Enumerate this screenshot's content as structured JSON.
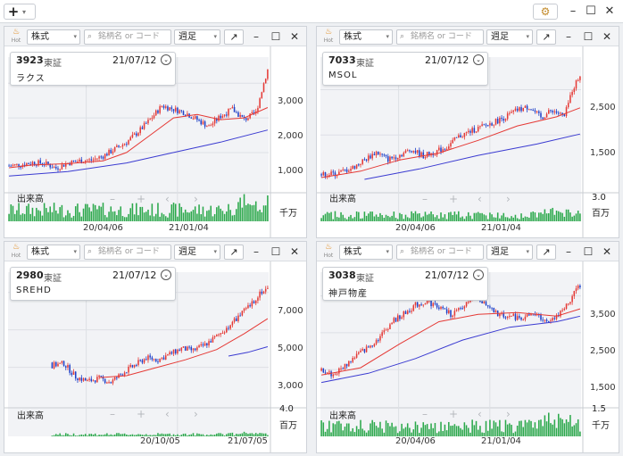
{
  "toolbar": {
    "add_icon": "plus-icon",
    "settings_icon": "gear-icon"
  },
  "panels": [
    {
      "controls": {
        "hot_label": "Hot",
        "type": "株式",
        "search_placeholder": "銘柄名 or コード",
        "period": "週足"
      },
      "info": {
        "code": "3923",
        "exchange": "東証",
        "date": "21/07/12",
        "name": "ラクス"
      },
      "price_ticks": [
        "3,000",
        "2,000",
        "1,000"
      ],
      "volume_label": "出来高",
      "volume_tick": "",
      "volume_unit": "千万",
      "date_ticks": [
        "20/04/06",
        "21/01/04"
      ]
    },
    {
      "controls": {
        "hot_label": "Hot",
        "type": "株式",
        "search_placeholder": "銘柄名 or コード",
        "period": "週足"
      },
      "info": {
        "code": "7033",
        "exchange": "東証",
        "date": "21/07/12",
        "name": "MSOL"
      },
      "price_ticks": [
        "2,500",
        "1,500"
      ],
      "volume_label": "出来高",
      "volume_tick": "3.0",
      "volume_unit": "百万",
      "date_ticks": [
        "20/04/06",
        "21/01/04"
      ]
    },
    {
      "controls": {
        "hot_label": "Hot",
        "type": "株式",
        "search_placeholder": "銘柄名 or コード",
        "period": "週足"
      },
      "info": {
        "code": "2980",
        "exchange": "東証",
        "date": "21/07/12",
        "name": "SREHD"
      },
      "price_ticks": [
        "7,000",
        "5,000",
        "3,000"
      ],
      "volume_label": "出来高",
      "volume_tick": "4.0",
      "volume_unit": "百万",
      "date_ticks": [
        "20/10/05",
        "21/07/05"
      ]
    },
    {
      "controls": {
        "hot_label": "Hot",
        "type": "株式",
        "search_placeholder": "銘柄名 or コード",
        "period": "週足"
      },
      "info": {
        "code": "3038",
        "exchange": "東証",
        "date": "21/07/12",
        "name": "神戸物産"
      },
      "price_ticks": [
        "3,500",
        "2,500",
        "1,500"
      ],
      "volume_label": "出来高",
      "volume_tick": "1.5",
      "volume_unit": "千万",
      "date_ticks": [
        "20/04/06",
        "21/01/04"
      ]
    }
  ],
  "chart_data": [
    {
      "type": "candlestick",
      "title": "3923 ラクス",
      "x_ticks": [
        "20/04/06",
        "21/01/04"
      ],
      "ylim": [
        200,
        3600
      ],
      "y_ticks": [
        1000,
        2000,
        3000
      ],
      "anchors": [
        [
          0,
          620
        ],
        [
          6,
          650
        ],
        [
          12,
          710
        ],
        [
          18,
          690
        ],
        [
          24,
          550
        ],
        [
          30,
          700
        ],
        [
          36,
          760
        ],
        [
          42,
          780
        ],
        [
          48,
          900
        ],
        [
          54,
          1100
        ],
        [
          60,
          1300
        ],
        [
          66,
          1600
        ],
        [
          72,
          1950
        ],
        [
          78,
          2350
        ],
        [
          84,
          2250
        ],
        [
          90,
          2150
        ],
        [
          96,
          1950
        ],
        [
          102,
          1750
        ],
        [
          108,
          2050
        ],
        [
          114,
          2250
        ],
        [
          120,
          1950
        ],
        [
          126,
          2150
        ],
        [
          130,
          3000
        ],
        [
          132,
          3400
        ]
      ],
      "ma_short": [
        [
          0,
          560
        ],
        [
          12,
          640
        ],
        [
          30,
          680
        ],
        [
          48,
          760
        ],
        [
          60,
          1000
        ],
        [
          72,
          1500
        ],
        [
          84,
          2000
        ],
        [
          96,
          2100
        ],
        [
          108,
          1950
        ],
        [
          120,
          2000
        ],
        [
          132,
          2300
        ]
      ],
      "ma_long": [
        [
          0,
          320
        ],
        [
          30,
          450
        ],
        [
          60,
          700
        ],
        [
          84,
          1000
        ],
        [
          108,
          1300
        ],
        [
          132,
          1650
        ]
      ],
      "volume_scale": 1.0
    },
    {
      "type": "candlestick",
      "title": "7033 MSOL",
      "x_ticks": [
        "20/04/06",
        "21/01/04"
      ],
      "ylim": [
        500,
        3100
      ],
      "y_ticks": [
        1500,
        2500
      ],
      "anchors": [
        [
          0,
          620
        ],
        [
          8,
          650
        ],
        [
          16,
          780
        ],
        [
          22,
          950
        ],
        [
          28,
          1120
        ],
        [
          34,
          960
        ],
        [
          40,
          1060
        ],
        [
          46,
          1180
        ],
        [
          52,
          1040
        ],
        [
          58,
          1120
        ],
        [
          64,
          1240
        ],
        [
          70,
          1460
        ],
        [
          76,
          1580
        ],
        [
          82,
          1680
        ],
        [
          88,
          1780
        ],
        [
          94,
          1900
        ],
        [
          100,
          2050
        ],
        [
          106,
          2120
        ],
        [
          112,
          1880
        ],
        [
          118,
          2050
        ],
        [
          124,
          1900
        ],
        [
          128,
          2500
        ],
        [
          132,
          2820
        ]
      ],
      "ma_short": [
        [
          0,
          560
        ],
        [
          20,
          700
        ],
        [
          40,
          950
        ],
        [
          60,
          1100
        ],
        [
          80,
          1380
        ],
        [
          100,
          1700
        ],
        [
          120,
          1900
        ],
        [
          132,
          2100
        ]
      ],
      "ma_long": [
        [
          22,
          520
        ],
        [
          50,
          750
        ],
        [
          80,
          1050
        ],
        [
          110,
          1300
        ],
        [
          132,
          1520
        ]
      ],
      "volume_scale": 0.55
    },
    {
      "type": "candlestick",
      "title": "2980 SREHD",
      "x_ticks": [
        "20/10/05",
        "21/07/05"
      ],
      "ylim": [
        1500,
        7800
      ],
      "y_ticks": [
        3000,
        5000,
        7000
      ],
      "anchors": [
        [
          22,
          3100
        ],
        [
          28,
          3200
        ],
        [
          34,
          2500
        ],
        [
          40,
          2250
        ],
        [
          46,
          2400
        ],
        [
          52,
          2200
        ],
        [
          58,
          2700
        ],
        [
          64,
          3100
        ],
        [
          70,
          3500
        ],
        [
          76,
          3400
        ],
        [
          82,
          3700
        ],
        [
          88,
          4000
        ],
        [
          94,
          3900
        ],
        [
          100,
          4200
        ],
        [
          106,
          4650
        ],
        [
          112,
          5200
        ],
        [
          118,
          5800
        ],
        [
          124,
          6400
        ],
        [
          128,
          7000
        ],
        [
          132,
          7200
        ]
      ],
      "ma_short": [
        [
          46,
          2450
        ],
        [
          60,
          2550
        ],
        [
          74,
          2950
        ],
        [
          90,
          3400
        ],
        [
          106,
          3950
        ],
        [
          120,
          4800
        ],
        [
          132,
          5600
        ]
      ],
      "ma_long": [
        [
          112,
          3600
        ],
        [
          122,
          3800
        ],
        [
          132,
          4100
        ]
      ],
      "volume_scale": 0.18
    },
    {
      "type": "candlestick",
      "title": "3038 神戸物産",
      "x_ticks": [
        "20/04/06",
        "21/01/04"
      ],
      "ylim": [
        800,
        4000
      ],
      "y_ticks": [
        1500,
        2500,
        3500
      ],
      "anchors": [
        [
          0,
          1500
        ],
        [
          6,
          1350
        ],
        [
          12,
          1600
        ],
        [
          18,
          1900
        ],
        [
          24,
          2100
        ],
        [
          30,
          2400
        ],
        [
          36,
          2800
        ],
        [
          42,
          3000
        ],
        [
          48,
          3250
        ],
        [
          54,
          3350
        ],
        [
          60,
          3200
        ],
        [
          66,
          3000
        ],
        [
          72,
          3150
        ],
        [
          78,
          3650
        ],
        [
          84,
          3200
        ],
        [
          90,
          3000
        ],
        [
          96,
          2950
        ],
        [
          102,
          2900
        ],
        [
          108,
          3000
        ],
        [
          114,
          2850
        ],
        [
          120,
          2950
        ],
        [
          126,
          3300
        ],
        [
          130,
          3700
        ],
        [
          132,
          3750
        ]
      ],
      "ma_short": [
        [
          0,
          1350
        ],
        [
          20,
          1550
        ],
        [
          40,
          2200
        ],
        [
          60,
          2800
        ],
        [
          80,
          3000
        ],
        [
          100,
          3050
        ],
        [
          120,
          2950
        ],
        [
          132,
          3150
        ]
      ],
      "ma_long": [
        [
          0,
          1150
        ],
        [
          24,
          1400
        ],
        [
          48,
          1800
        ],
        [
          72,
          2300
        ],
        [
          96,
          2650
        ],
        [
          120,
          2800
        ],
        [
          132,
          2950
        ]
      ],
      "volume_scale": 0.9
    }
  ]
}
